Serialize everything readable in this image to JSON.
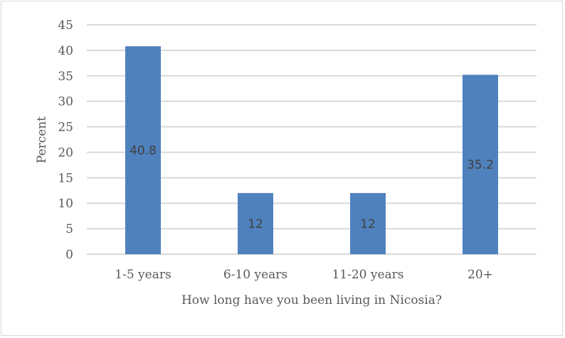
{
  "chart_data": {
    "type": "bar",
    "title": "",
    "categories": [
      "1-5 years",
      "6-10 years",
      "11-20 years",
      "20+"
    ],
    "values": [
      40.8,
      12,
      12,
      35.2
    ],
    "data_labels": [
      "40.8",
      "12",
      "12",
      "35.2"
    ],
    "xlabel": "How long have you been living in Nicosia?",
    "ylabel": "Percent",
    "ylim": [
      0,
      45
    ],
    "yticks": [
      "0",
      "5",
      "10",
      "15",
      "20",
      "25",
      "30",
      "35",
      "40",
      "45"
    ],
    "grid": true,
    "legend": "none",
    "colors": {
      "bar": "#4f81bd",
      "grid": "#d9d9d9",
      "text": "#595959"
    }
  }
}
